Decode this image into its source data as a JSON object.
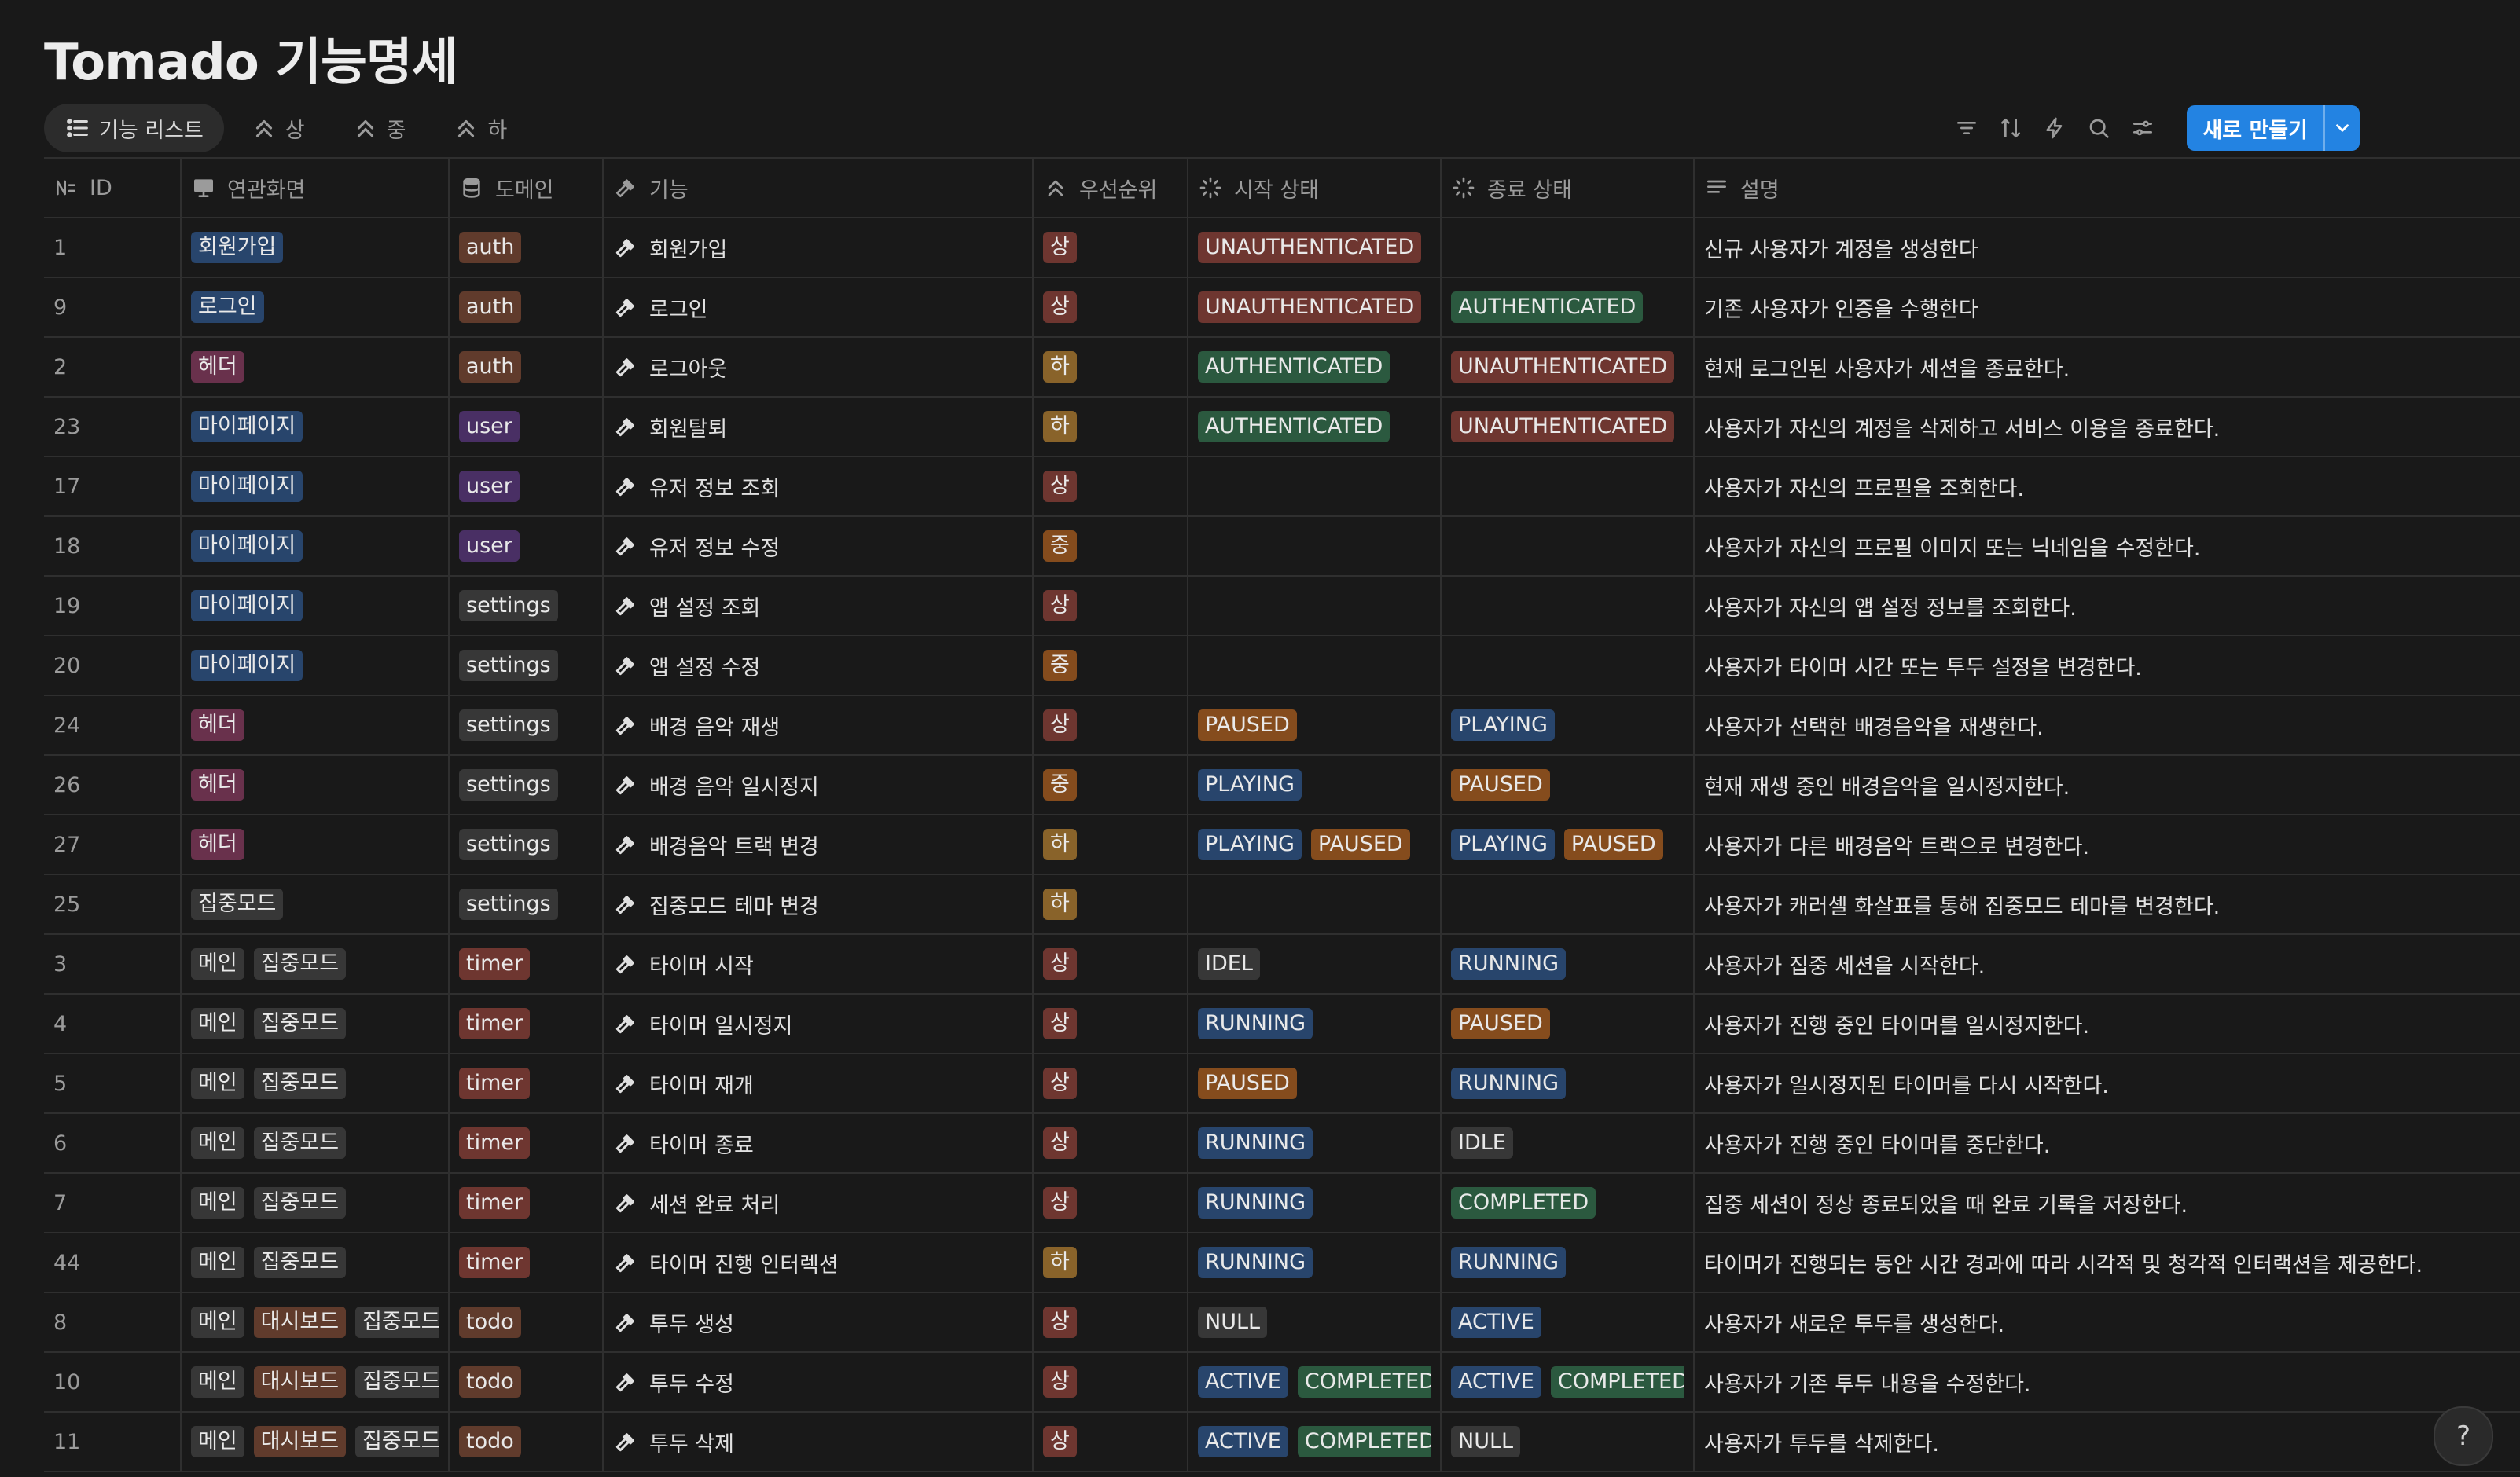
{
  "page": {
    "title": "Tomado 기능명세",
    "new_button_label": "새로 만들기"
  },
  "tabs": [
    {
      "label": "기능 리스트",
      "icon": "list-icon",
      "active": true
    },
    {
      "label": "상",
      "icon": "double-chevron-up-icon",
      "active": false
    },
    {
      "label": "중",
      "icon": "double-chevron-up-icon",
      "active": false
    },
    {
      "label": "하",
      "icon": "double-chevron-up-icon",
      "active": false
    }
  ],
  "toolbar": [
    "filter-icon",
    "sort-icon",
    "lightning-icon",
    "search-icon",
    "settings-sliders-icon"
  ],
  "columns": [
    {
      "key": "id",
      "label": "ID",
      "icon": "number-icon"
    },
    {
      "key": "screens",
      "label": "연관화면",
      "icon": "monitor-icon"
    },
    {
      "key": "domain",
      "label": "도메인",
      "icon": "database-icon"
    },
    {
      "key": "feature",
      "label": "기능",
      "icon": "hammer-icon"
    },
    {
      "key": "priority",
      "label": "우선순위",
      "icon": "double-chevron-up-icon"
    },
    {
      "key": "start_state",
      "label": "시작 상태",
      "icon": "status-spinner-icon"
    },
    {
      "key": "end_state",
      "label": "종료 상태",
      "icon": "status-spinner-icon"
    },
    {
      "key": "description",
      "label": "설명",
      "icon": "text-lines-icon"
    }
  ],
  "colors": {
    "screens": {
      "회원가입": "blue",
      "로그인": "blue",
      "헤더": "pink",
      "마이페이지": "blue",
      "집중모드": "default",
      "메인": "default",
      "대시보드": "brown"
    },
    "domain": {
      "auth": "brown",
      "user": "purple",
      "settings": "gray",
      "timer": "red",
      "todo": "brown"
    },
    "priority": {
      "상": "red",
      "중": "orange",
      "하": "yellow"
    },
    "state": {
      "UNAUTHENTICATED": "red",
      "AUTHENTICATED": "green",
      "PAUSED": "orange",
      "PLAYING": "blue",
      "IDEL": "gray",
      "IDLE": "gray",
      "RUNNING": "blue",
      "COMPLETED": "green",
      "NULL": "default",
      "ACTIVE": "blue"
    }
  },
  "rows": [
    {
      "id": "1",
      "screens": [
        "회원가입"
      ],
      "domain": "auth",
      "feature": "회원가입",
      "priority": "상",
      "start_state": [
        "UNAUTHENTICATED"
      ],
      "end_state": [],
      "description": "신규 사용자가 계정을 생성한다"
    },
    {
      "id": "9",
      "screens": [
        "로그인"
      ],
      "domain": "auth",
      "feature": "로그인",
      "priority": "상",
      "start_state": [
        "UNAUTHENTICATED"
      ],
      "end_state": [
        "AUTHENTICATED"
      ],
      "description": "기존 사용자가 인증을 수행한다"
    },
    {
      "id": "2",
      "screens": [
        "헤더"
      ],
      "domain": "auth",
      "feature": "로그아웃",
      "priority": "하",
      "start_state": [
        "AUTHENTICATED"
      ],
      "end_state": [
        "UNAUTHENTICATED"
      ],
      "description": "현재 로그인된 사용자가 세션을 종료한다."
    },
    {
      "id": "23",
      "screens": [
        "마이페이지"
      ],
      "domain": "user",
      "feature": "회원탈퇴",
      "priority": "하",
      "start_state": [
        "AUTHENTICATED"
      ],
      "end_state": [
        "UNAUTHENTICATED"
      ],
      "description": "사용자가 자신의 계정을 삭제하고 서비스 이용을 종료한다."
    },
    {
      "id": "17",
      "screens": [
        "마이페이지"
      ],
      "domain": "user",
      "feature": "유저 정보 조회",
      "priority": "상",
      "start_state": [],
      "end_state": [],
      "description": "사용자가 자신의 프로필을 조회한다."
    },
    {
      "id": "18",
      "screens": [
        "마이페이지"
      ],
      "domain": "user",
      "feature": "유저 정보 수정",
      "priority": "중",
      "start_state": [],
      "end_state": [],
      "description": "사용자가 자신의 프로필 이미지 또는 닉네임을 수정한다."
    },
    {
      "id": "19",
      "screens": [
        "마이페이지"
      ],
      "domain": "settings",
      "feature": "앱 설정 조회",
      "priority": "상",
      "start_state": [],
      "end_state": [],
      "description": "사용자가 자신의 앱 설정 정보를 조회한다."
    },
    {
      "id": "20",
      "screens": [
        "마이페이지"
      ],
      "domain": "settings",
      "feature": "앱 설정 수정",
      "priority": "중",
      "start_state": [],
      "end_state": [],
      "description": "사용자가 타이머 시간 또는 투두 설정을 변경한다."
    },
    {
      "id": "24",
      "screens": [
        "헤더"
      ],
      "domain": "settings",
      "feature": "배경 음악 재생",
      "priority": "상",
      "start_state": [
        "PAUSED"
      ],
      "end_state": [
        "PLAYING"
      ],
      "description": "사용자가 선택한 배경음악을 재생한다."
    },
    {
      "id": "26",
      "screens": [
        "헤더"
      ],
      "domain": "settings",
      "feature": "배경 음악 일시정지",
      "priority": "중",
      "start_state": [
        "PLAYING"
      ],
      "end_state": [
        "PAUSED"
      ],
      "description": "현재 재생 중인 배경음악을 일시정지한다."
    },
    {
      "id": "27",
      "screens": [
        "헤더"
      ],
      "domain": "settings",
      "feature": "배경음악 트랙 변경",
      "priority": "하",
      "start_state": [
        "PLAYING",
        "PAUSED"
      ],
      "end_state": [
        "PLAYING",
        "PAUSED"
      ],
      "description": "사용자가 다른 배경음악 트랙으로 변경한다."
    },
    {
      "id": "25",
      "screens": [
        "집중모드"
      ],
      "domain": "settings",
      "feature": "집중모드 테마 변경",
      "priority": "하",
      "start_state": [],
      "end_state": [],
      "description": "사용자가 캐러셀 화살표를 통해 집중모드 테마를 변경한다."
    },
    {
      "id": "3",
      "screens": [
        "메인",
        "집중모드"
      ],
      "domain": "timer",
      "feature": "타이머 시작",
      "priority": "상",
      "start_state": [
        "IDEL"
      ],
      "end_state": [
        "RUNNING"
      ],
      "description": "사용자가 집중 세션을 시작한다."
    },
    {
      "id": "4",
      "screens": [
        "메인",
        "집중모드"
      ],
      "domain": "timer",
      "feature": "타이머 일시정지",
      "priority": "상",
      "start_state": [
        "RUNNING"
      ],
      "end_state": [
        "PAUSED"
      ],
      "description": "사용자가 진행 중인 타이머를 일시정지한다."
    },
    {
      "id": "5",
      "screens": [
        "메인",
        "집중모드"
      ],
      "domain": "timer",
      "feature": "타이머 재개",
      "priority": "상",
      "start_state": [
        "PAUSED"
      ],
      "end_state": [
        "RUNNING"
      ],
      "description": "사용자가 일시정지된 타이머를 다시 시작한다."
    },
    {
      "id": "6",
      "screens": [
        "메인",
        "집중모드"
      ],
      "domain": "timer",
      "feature": "타이머 종료",
      "priority": "상",
      "start_state": [
        "RUNNING"
      ],
      "end_state": [
        "IDLE"
      ],
      "description": "사용자가 진행 중인 타이머를 중단한다."
    },
    {
      "id": "7",
      "screens": [
        "메인",
        "집중모드"
      ],
      "domain": "timer",
      "feature": "세션 완료 처리",
      "priority": "상",
      "start_state": [
        "RUNNING"
      ],
      "end_state": [
        "COMPLETED"
      ],
      "description": "집중 세션이 정상 종료되었을 때 완료 기록을 저장한다."
    },
    {
      "id": "44",
      "screens": [
        "메인",
        "집중모드"
      ],
      "domain": "timer",
      "feature": "타이머 진행 인터렉션",
      "priority": "하",
      "start_state": [
        "RUNNING"
      ],
      "end_state": [
        "RUNNING"
      ],
      "description": "타이머가 진행되는 동안 시간 경과에 따라 시각적 및 청각적 인터랙션을 제공한다."
    },
    {
      "id": "8",
      "screens": [
        "메인",
        "대시보드",
        "집중모드"
      ],
      "domain": "todo",
      "feature": "투두 생성",
      "priority": "상",
      "start_state": [
        "NULL"
      ],
      "end_state": [
        "ACTIVE"
      ],
      "description": "사용자가 새로운 투두를 생성한다."
    },
    {
      "id": "10",
      "screens": [
        "메인",
        "대시보드",
        "집중모드"
      ],
      "domain": "todo",
      "feature": "투두 수정",
      "priority": "상",
      "start_state": [
        "ACTIVE",
        "COMPLETED"
      ],
      "end_state": [
        "ACTIVE",
        "COMPLETED"
      ],
      "description": "사용자가 기존 투두 내용을 수정한다."
    },
    {
      "id": "11",
      "screens": [
        "메인",
        "대시보드",
        "집중모드"
      ],
      "domain": "todo",
      "feature": "투두 삭제",
      "priority": "상",
      "start_state": [
        "ACTIVE",
        "COMPLETED"
      ],
      "end_state": [
        "NULL"
      ],
      "description": "사용자가 투두를 삭제한다."
    }
  ],
  "help_label": "?"
}
